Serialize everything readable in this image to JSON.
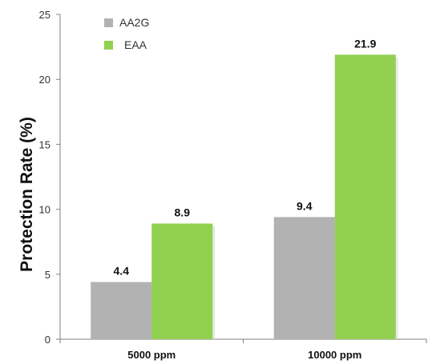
{
  "chart_data": {
    "type": "bar",
    "categories": [
      "5000 ppm",
      "10000 ppm"
    ],
    "series": [
      {
        "name": "AA2G",
        "values": [
          4.4,
          9.4
        ],
        "color": "#b2b2b2"
      },
      {
        "name": "EAA",
        "values": [
          8.9,
          21.9
        ],
        "color": "#92d050"
      }
    ],
    "data_labels": [
      [
        "4.4",
        "9.4"
      ],
      [
        "8.9",
        "21.9"
      ]
    ],
    "title": "",
    "xlabel": "",
    "ylabel": "Protection Rate (%)",
    "ylim": [
      0,
      25
    ],
    "yticks": [
      "0",
      "5",
      "10",
      "15",
      "20",
      "25"
    ],
    "grid": false,
    "legend_position": "top-left"
  }
}
